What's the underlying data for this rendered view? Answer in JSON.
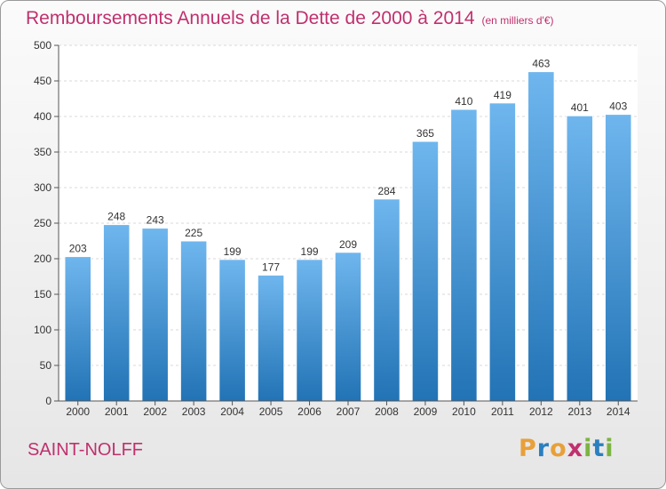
{
  "title": "Remboursements Annuels de la Dette de 2000 à 2014",
  "unit_note": "(en milliers d'€)",
  "city": "SAINT-NOLFF",
  "logo": {
    "letters": [
      "P",
      "r",
      "o",
      "x",
      "i",
      "t",
      "i"
    ],
    "colors": [
      "#e8a03a",
      "#2a7fbf",
      "#e8a03a",
      "#c0306e",
      "#7cb342",
      "#2a7fbf",
      "#7cb342"
    ]
  },
  "colors": {
    "accent": "#c0306e",
    "bar_top": "#6fb6ee",
    "bar_bottom": "#2273b5"
  },
  "chart_data": {
    "type": "bar",
    "categories": [
      "2000",
      "2001",
      "2002",
      "2003",
      "2004",
      "2005",
      "2006",
      "2007",
      "2008",
      "2009",
      "2010",
      "2011",
      "2012",
      "2013",
      "2014"
    ],
    "values": [
      203,
      248,
      243,
      225,
      199,
      177,
      199,
      209,
      284,
      365,
      410,
      419,
      463,
      401,
      403
    ],
    "ylim": [
      0,
      500
    ],
    "yticks": [
      0,
      50,
      100,
      150,
      200,
      250,
      300,
      350,
      400,
      450,
      500
    ],
    "grid": true,
    "legend": "none"
  }
}
